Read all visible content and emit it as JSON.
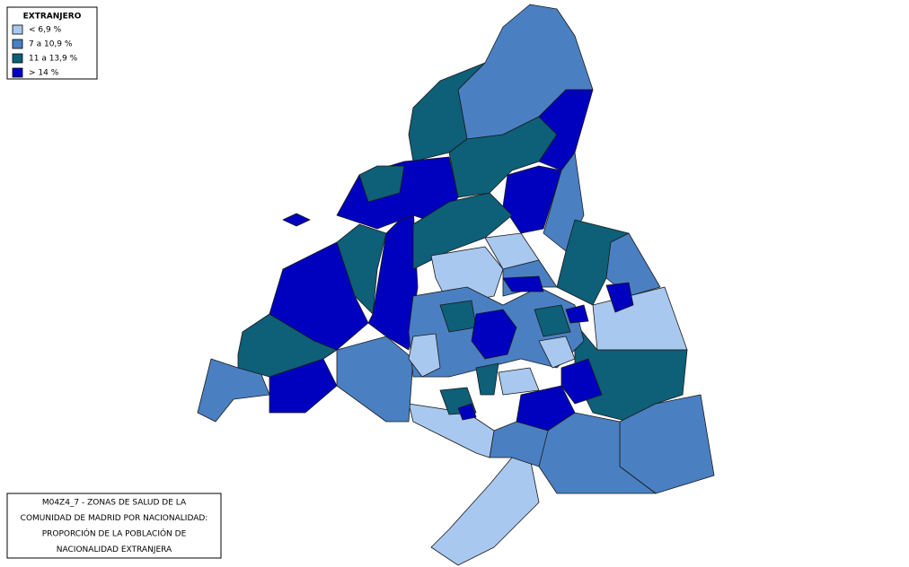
{
  "legend": {
    "title": "EXTRANJERO",
    "items": [
      {
        "label": "< 6,9 %",
        "color": "#a9c8ef"
      },
      {
        "label": "7 a 10,9 %",
        "color": "#4a80c2"
      },
      {
        "label": "11 a 13,9 %",
        "color": "#0e5f78"
      },
      {
        "label": "> 14 %",
        "color": "#0000bf"
      }
    ]
  },
  "caption": {
    "lines": [
      "M04Z4_7 - ZONAS DE SALUD DE LA",
      "COMUNIDAD DE MADRID POR NACIONALIDAD:",
      "PROPORCIÓN DE LA POBLACIÓN DE",
      "NACIONALIDAD EXTRANJERA"
    ]
  }
}
